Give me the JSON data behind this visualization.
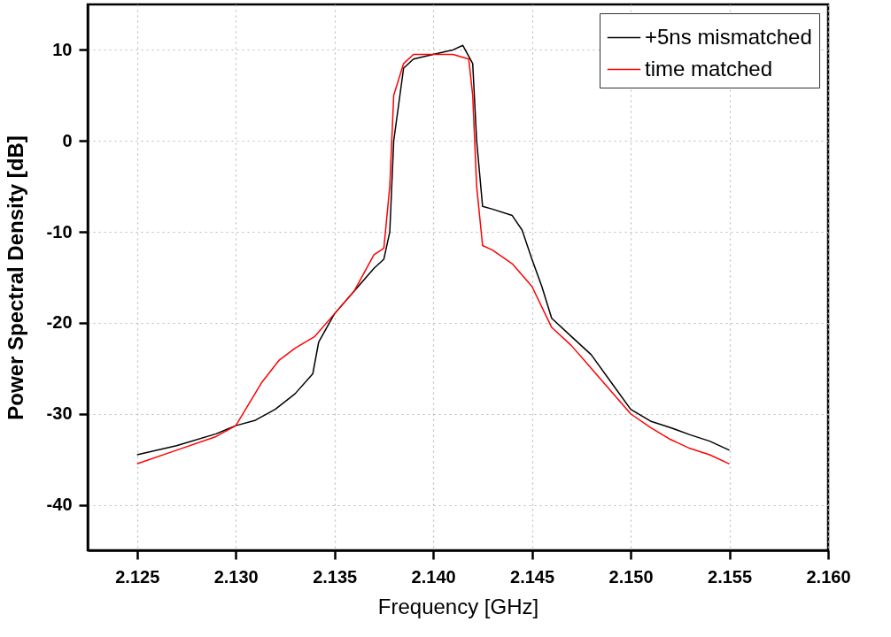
{
  "chart_data": {
    "type": "line",
    "xlabel": "Frequency [GHz]",
    "ylabel": "Power Spectral Density [dB]",
    "xlim": [
      2.1225,
      2.16
    ],
    "xticks": [
      2.125,
      {
        "value": 2.13,
        "label": "2.130"
      },
      2.135,
      {
        "value": 2.14,
        "label": "2.140"
      },
      2.145,
      {
        "value": 2.15,
        "label": "2.150"
      },
      2.155,
      {
        "value": 2.16,
        "label": "2.160"
      }
    ],
    "ylim": [
      -45,
      15
    ],
    "yticks": [
      -40,
      -30,
      -20,
      -10,
      0,
      10
    ],
    "grid": true,
    "legend": "top right",
    "line_style": "solid",
    "marker": "none",
    "series": [
      {
        "name": "+5ns mismatched",
        "color": "#000000",
        "x": [
          2.125,
          2.127,
          2.129,
          2.13,
          2.131,
          2.132,
          2.133,
          2.1339,
          2.1342,
          2.135,
          2.136,
          2.137,
          2.1375,
          2.1378,
          2.138,
          2.1385,
          2.139,
          2.14,
          2.141,
          2.1415,
          2.142,
          2.1422,
          2.1425,
          2.143,
          2.144,
          2.1445,
          2.145,
          2.1455,
          2.146,
          2.147,
          2.148,
          2.149,
          2.15,
          2.151,
          2.152,
          2.153,
          2.154,
          2.155
        ],
        "values": [
          -34.5,
          -33.5,
          -32.2,
          -31.3,
          -30.7,
          -29.5,
          -27.8,
          -25.6,
          -22.1,
          -19,
          -16.5,
          -14,
          -13,
          -10,
          0,
          8,
          9,
          9.5,
          10,
          10.5,
          8.5,
          0,
          -7.2,
          -7.5,
          -8.2,
          -9.8,
          -13,
          -16,
          -19.5,
          -21.5,
          -23.5,
          -26.5,
          -29.5,
          -30.8,
          -31.5,
          -32.3,
          -33,
          -34
        ]
      },
      {
        "name": "time matched",
        "color": "#ff0000",
        "x": [
          2.125,
          2.127,
          2.129,
          2.13,
          2.1313,
          2.1322,
          2.133,
          2.134,
          2.135,
          2.136,
          2.137,
          2.1375,
          2.1378,
          2.138,
          2.1385,
          2.139,
          2.14,
          2.141,
          2.1418,
          2.142,
          2.1422,
          2.1425,
          2.143,
          2.144,
          2.145,
          2.146,
          2.147,
          2.148,
          2.149,
          2.15,
          2.151,
          2.152,
          2.153,
          2.154,
          2.155
        ],
        "values": [
          -35.5,
          -34,
          -32.5,
          -31.3,
          -26.6,
          -24.1,
          -22.8,
          -21.5,
          -19,
          -16.5,
          -12.5,
          -11.8,
          -5,
          5,
          8.5,
          9.5,
          9.5,
          9.5,
          9,
          5,
          -5,
          -11.5,
          -12,
          -13.5,
          -16,
          -20.5,
          -22.5,
          -25,
          -27.5,
          -30,
          -31.5,
          -32.8,
          -33.8,
          -34.5,
          -35.5
        ]
      }
    ]
  }
}
